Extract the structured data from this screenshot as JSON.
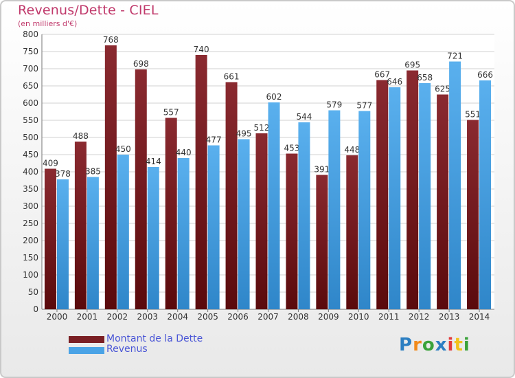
{
  "title": "Revenus/Dette - CIEL",
  "subtitle": "(en milliers d'€)",
  "legend": {
    "debt_label": "Montant de la Dette",
    "revenue_label": "Revenus"
  },
  "logo_text": "Proxiti",
  "colors": {
    "debt": "#7a1f24",
    "revenue": "#4aa3e6",
    "title": "#c0396b",
    "legend_text": "#4a56d6"
  },
  "chart_data": {
    "type": "bar",
    "categories": [
      "2000",
      "2001",
      "2002",
      "2003",
      "2004",
      "2005",
      "2006",
      "2007",
      "2008",
      "2009",
      "2010",
      "2011",
      "2012",
      "2013",
      "2014"
    ],
    "series": [
      {
        "name": "Montant de la Dette",
        "values": [
          409,
          488,
          768,
          698,
          557,
          740,
          661,
          512,
          453,
          391,
          448,
          667,
          695,
          625,
          551
        ]
      },
      {
        "name": "Revenus",
        "values": [
          378,
          385,
          450,
          414,
          440,
          477,
          495,
          602,
          544,
          579,
          577,
          646,
          658,
          721,
          666
        ]
      }
    ],
    "ylim": [
      0,
      800
    ],
    "yticks": [
      0,
      50,
      100,
      150,
      200,
      250,
      300,
      350,
      400,
      450,
      500,
      550,
      600,
      650,
      700,
      750,
      800
    ],
    "grid": true
  }
}
